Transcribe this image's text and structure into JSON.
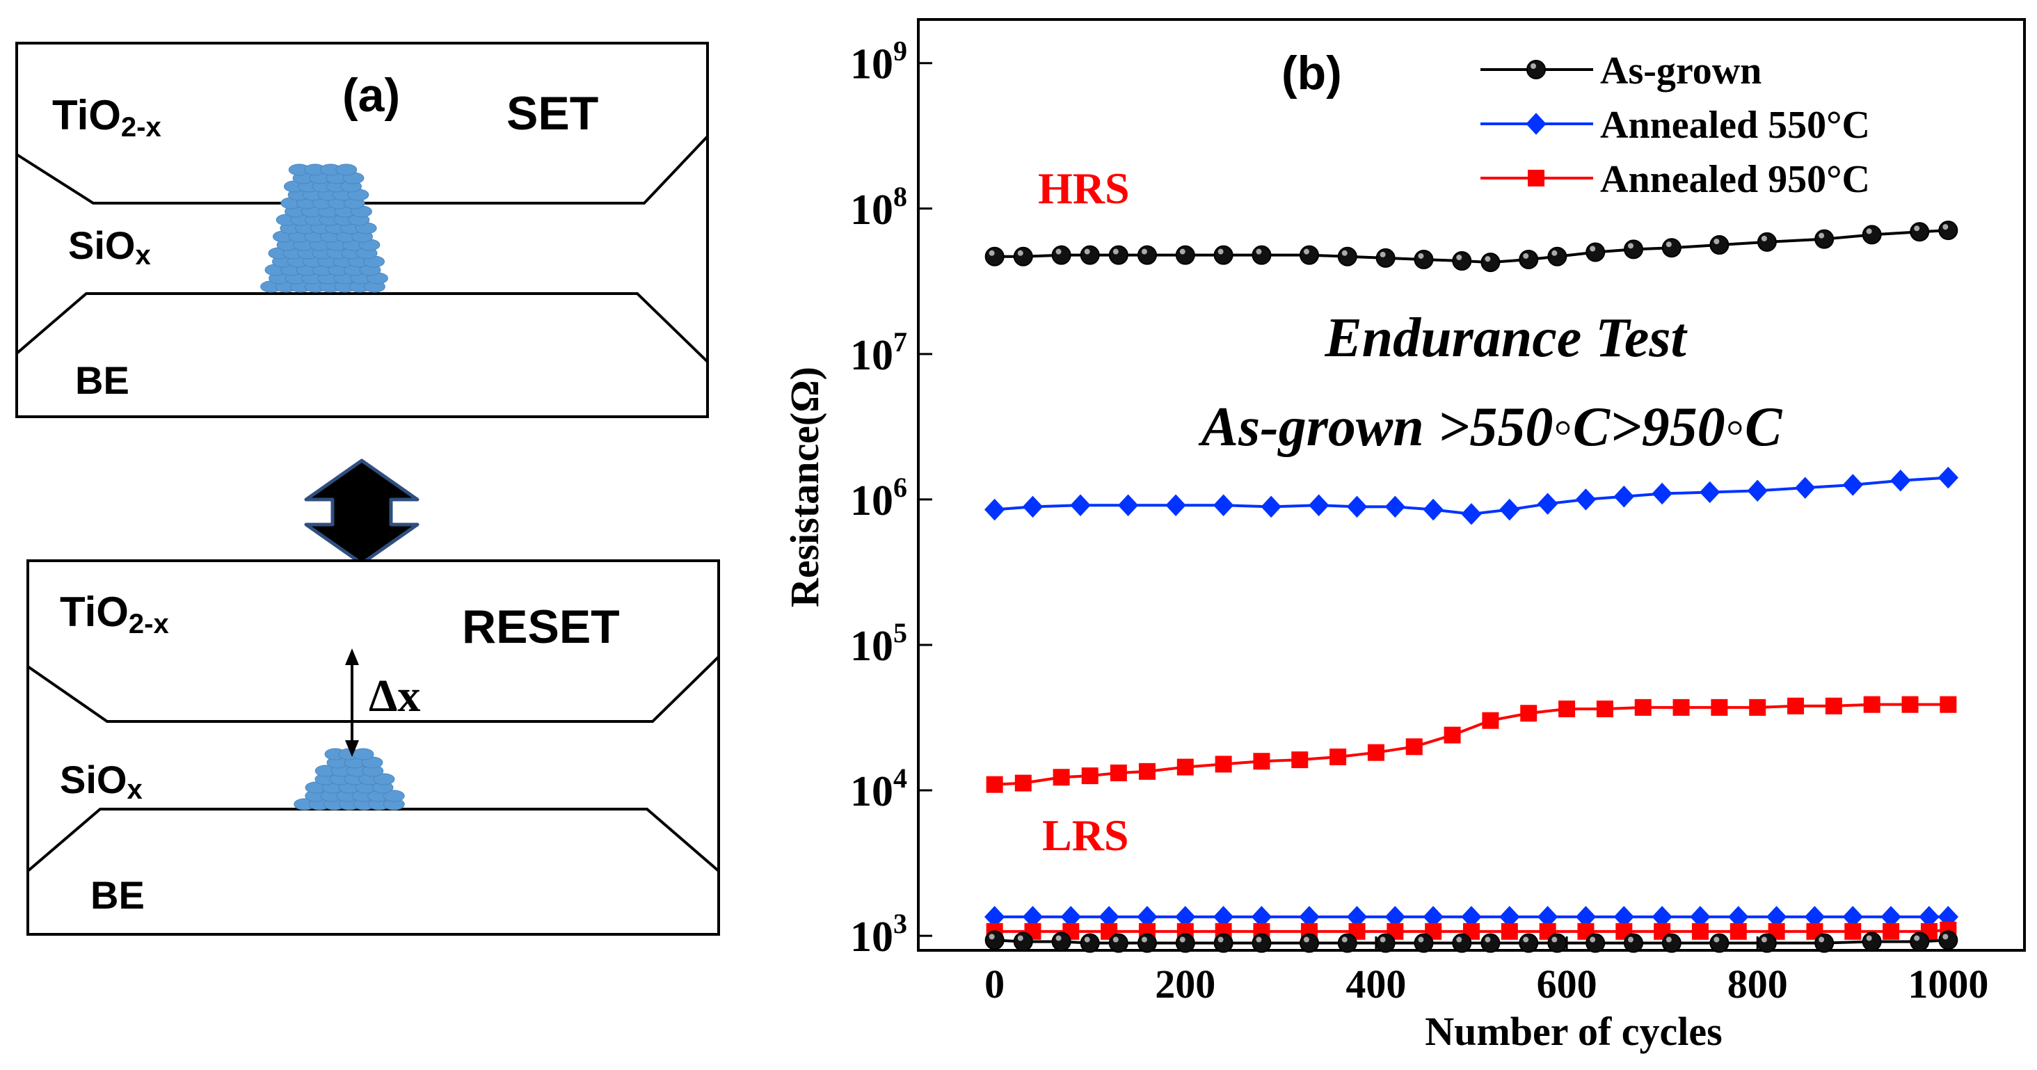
{
  "panel_a": {
    "label": "(a)",
    "set_box": {
      "state": "SET",
      "top_layer": {
        "base": "TiO",
        "sub": "2-x"
      },
      "middle_layer": {
        "base": "SiO",
        "sub": "x"
      },
      "bottom_layer": "BE"
    },
    "reset_box": {
      "state": "RESET",
      "top_layer": {
        "base": "TiO",
        "sub": "2-x"
      },
      "middle_layer": {
        "base": "SiO",
        "sub": "x"
      },
      "bottom_layer": "BE",
      "gap_label": "Δx"
    },
    "colors": {
      "filament": "#5b9bd5",
      "filament_edge": "#4a86bf",
      "arrow": "#000000",
      "arrow_edge": "#2f4f7f"
    }
  },
  "chart_data": {
    "type": "line",
    "panel_label": "(b)",
    "xlabel": "Number  of cycles",
    "ylabel": "Resistance(Ω)",
    "xlim": [
      -80,
      1080
    ],
    "ylim_log10": [
      2.9,
      9.3
    ],
    "x_ticks": [
      0,
      200,
      400,
      600,
      800,
      1000
    ],
    "y_ticks": [
      {
        "base": "10",
        "exp": "3",
        "value": 3
      },
      {
        "base": "10",
        "exp": "4",
        "value": 4
      },
      {
        "base": "10",
        "exp": "5",
        "value": 5
      },
      {
        "base": "10",
        "exp": "6",
        "value": 6
      },
      {
        "base": "10",
        "exp": "7",
        "value": 7
      },
      {
        "base": "10",
        "exp": "8",
        "value": 8
      },
      {
        "base": "10",
        "exp": "9",
        "value": 9
      }
    ],
    "annotations": {
      "hrs": "HRS",
      "lrs": "LRS",
      "title_line1": "Endurance Test",
      "title_line2": "As-grown >550◦C>950◦C"
    },
    "legend_position": "top-right",
    "series": [
      {
        "name": "As-grown",
        "state": "HRS",
        "marker": "circle",
        "color": "#000000",
        "x": [
          0,
          30,
          70,
          100,
          130,
          160,
          200,
          240,
          280,
          330,
          370,
          410,
          450,
          490,
          520,
          560,
          590,
          630,
          670,
          710,
          760,
          810,
          870,
          920,
          970,
          1000
        ],
        "log10_r": [
          7.67,
          7.67,
          7.68,
          7.68,
          7.68,
          7.68,
          7.68,
          7.68,
          7.68,
          7.68,
          7.67,
          7.66,
          7.65,
          7.64,
          7.63,
          7.65,
          7.67,
          7.7,
          7.72,
          7.73,
          7.75,
          7.77,
          7.79,
          7.82,
          7.84,
          7.85
        ]
      },
      {
        "name": "Annealed 550°C",
        "state": "HRS",
        "marker": "diamond",
        "color": "#0033ff",
        "x": [
          0,
          40,
          90,
          140,
          190,
          240,
          290,
          340,
          380,
          420,
          460,
          500,
          540,
          580,
          620,
          660,
          700,
          750,
          800,
          850,
          900,
          950,
          1000
        ],
        "log10_r": [
          5.93,
          5.95,
          5.96,
          5.96,
          5.96,
          5.96,
          5.95,
          5.96,
          5.95,
          5.95,
          5.93,
          5.9,
          5.93,
          5.97,
          6.0,
          6.02,
          6.04,
          6.05,
          6.06,
          6.08,
          6.1,
          6.13,
          6.15
        ]
      },
      {
        "name": "Annealed 950°C",
        "state": "HRS",
        "marker": "square",
        "color": "#ff0000",
        "x": [
          0,
          30,
          70,
          100,
          130,
          160,
          200,
          240,
          280,
          320,
          360,
          400,
          440,
          480,
          520,
          560,
          600,
          640,
          680,
          720,
          760,
          800,
          840,
          880,
          920,
          960,
          1000
        ],
        "log10_r": [
          4.04,
          4.05,
          4.09,
          4.1,
          4.12,
          4.13,
          4.16,
          4.18,
          4.2,
          4.21,
          4.23,
          4.26,
          4.3,
          4.38,
          4.48,
          4.53,
          4.56,
          4.56,
          4.57,
          4.57,
          4.57,
          4.57,
          4.58,
          4.58,
          4.59,
          4.59,
          4.59
        ]
      },
      {
        "name": "Annealed 550°C",
        "state": "LRS",
        "marker": "diamond",
        "color": "#0033ff",
        "x": [
          0,
          40,
          80,
          120,
          160,
          200,
          240,
          280,
          330,
          380,
          420,
          460,
          500,
          540,
          580,
          620,
          660,
          700,
          740,
          780,
          820,
          860,
          900,
          940,
          980,
          1000
        ],
        "log10_r": [
          3.13,
          3.13,
          3.13,
          3.13,
          3.13,
          3.13,
          3.13,
          3.13,
          3.13,
          3.13,
          3.13,
          3.13,
          3.13,
          3.13,
          3.13,
          3.13,
          3.13,
          3.13,
          3.13,
          3.13,
          3.13,
          3.13,
          3.13,
          3.13,
          3.13,
          3.13
        ]
      },
      {
        "name": "Annealed 950°C",
        "state": "LRS",
        "marker": "square",
        "color": "#ff0000",
        "x": [
          0,
          40,
          80,
          120,
          160,
          200,
          240,
          280,
          330,
          380,
          420,
          460,
          500,
          540,
          580,
          620,
          660,
          700,
          740,
          780,
          820,
          860,
          900,
          940,
          980,
          1000
        ],
        "log10_r": [
          3.03,
          3.03,
          3.03,
          3.03,
          3.03,
          3.03,
          3.03,
          3.03,
          3.03,
          3.03,
          3.03,
          3.03,
          3.03,
          3.03,
          3.03,
          3.03,
          3.03,
          3.03,
          3.03,
          3.03,
          3.03,
          3.03,
          3.03,
          3.03,
          3.03,
          3.04
        ]
      },
      {
        "name": "As-grown",
        "state": "LRS",
        "marker": "circle",
        "color": "#000000",
        "x": [
          0,
          30,
          70,
          100,
          130,
          160,
          200,
          240,
          280,
          330,
          370,
          410,
          450,
          490,
          520,
          560,
          590,
          630,
          670,
          710,
          760,
          810,
          870,
          920,
          970,
          1000
        ],
        "log10_r": [
          2.97,
          2.96,
          2.96,
          2.95,
          2.95,
          2.95,
          2.95,
          2.95,
          2.95,
          2.95,
          2.95,
          2.95,
          2.95,
          2.95,
          2.95,
          2.95,
          2.95,
          2.95,
          2.95,
          2.95,
          2.95,
          2.95,
          2.95,
          2.96,
          2.96,
          2.97
        ]
      }
    ],
    "legend": [
      {
        "label": "As-grown",
        "marker": "circle",
        "color": "#000000"
      },
      {
        "label": "Annealed 550°C",
        "marker": "diamond",
        "color": "#0033ff"
      },
      {
        "label": "Annealed 950°C",
        "marker": "square",
        "color": "#ff0000"
      }
    ],
    "colors": {
      "hrs_label": "#ff0000",
      "lrs_label": "#ff0000"
    }
  }
}
